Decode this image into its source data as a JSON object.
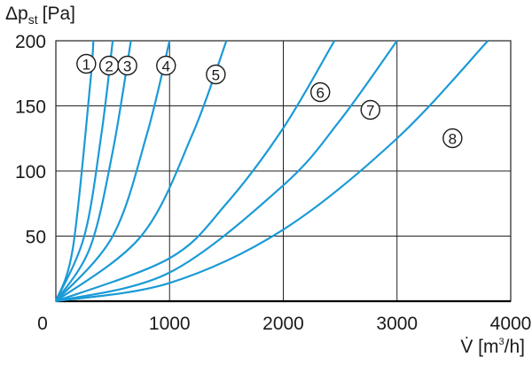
{
  "chart_data": {
    "type": "line",
    "title": "",
    "ylabel_main": "Δp",
    "ylabel_sub": "st",
    "ylabel_unit": "[Pa]",
    "xlabel_main": "V̇ [m",
    "xlabel_sup": "3",
    "xlabel_unit": "/h]",
    "xlim": [
      0,
      4000
    ],
    "ylim": [
      0,
      200
    ],
    "xticks": [
      0,
      1000,
      2000,
      3000,
      4000
    ],
    "yticks": [
      50,
      100,
      150,
      200
    ],
    "grid": true,
    "curve_color": "#1a9ad6",
    "series": [
      {
        "name": "①",
        "x": [
          0,
          150,
          300,
          330
        ],
        "y": [
          0,
          41,
          165,
          200
        ]
      },
      {
        "name": "②",
        "x": [
          0,
          250,
          400,
          500
        ],
        "y": [
          0,
          50,
          128,
          200
        ]
      },
      {
        "name": "③",
        "x": [
          0,
          300,
          500,
          660
        ],
        "y": [
          0,
          41,
          115,
          200
        ]
      },
      {
        "name": "④",
        "x": [
          0,
          500,
          800,
          1000
        ],
        "y": [
          0,
          50,
          128,
          200
        ]
      },
      {
        "name": "⑤",
        "x": [
          0,
          750,
          1200,
          1500
        ],
        "y": [
          0,
          50,
          128,
          200
        ]
      },
      {
        "name": "⑥",
        "x": [
          0,
          1000,
          1500,
          2000,
          2450
        ],
        "y": [
          0,
          33,
          75,
          133,
          200
        ]
      },
      {
        "name": "⑦",
        "x": [
          0,
          1000,
          2000,
          2500,
          3000
        ],
        "y": [
          0,
          22,
          89,
          139,
          200
        ]
      },
      {
        "name": "⑧",
        "x": [
          0,
          1000,
          2000,
          3000,
          3800
        ],
        "y": [
          0,
          14,
          55,
          125,
          200
        ]
      }
    ]
  }
}
